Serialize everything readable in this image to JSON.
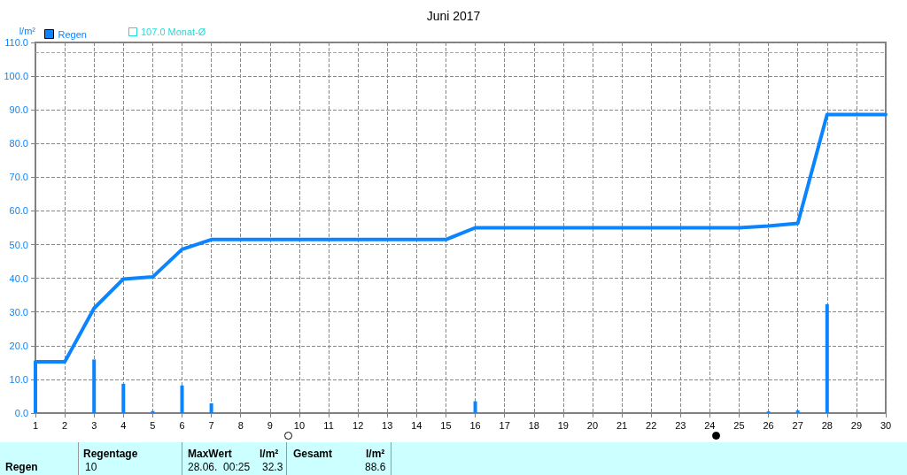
{
  "chart_data": {
    "type": "bar",
    "title": "Juni 2017",
    "ylabel": "l/m²",
    "x": [
      1,
      2,
      3,
      4,
      5,
      6,
      7,
      8,
      9,
      10,
      11,
      12,
      13,
      14,
      15,
      16,
      17,
      18,
      19,
      20,
      21,
      22,
      23,
      24,
      25,
      26,
      27,
      28,
      29,
      30
    ],
    "series": [
      {
        "name": "Regen",
        "color": "#0a84ff",
        "values": [
          15.2,
          0,
          15.9,
          8.7,
          0.6,
          8.2,
          2.9,
          0,
          0,
          0,
          0,
          0,
          0,
          0,
          0,
          3.5,
          0,
          0,
          0,
          0,
          0,
          0,
          0,
          0,
          0,
          0.5,
          0.8,
          32.3,
          0,
          0
        ]
      },
      {
        "type": "line",
        "color": "#0a84ff",
        "x": [
          1,
          2,
          3,
          4,
          5,
          6,
          7,
          15,
          16,
          25,
          26,
          27,
          28,
          30
        ],
        "values": [
          15.2,
          15.2,
          31.1,
          39.8,
          40.4,
          48.6,
          51.5,
          51.5,
          55.0,
          55.0,
          55.5,
          56.3,
          88.6,
          88.6
        ]
      }
    ],
    "xlim": [
      1,
      30
    ],
    "xticks": [
      1,
      2,
      3,
      4,
      5,
      6,
      7,
      8,
      9,
      10,
      11,
      12,
      13,
      14,
      15,
      16,
      17,
      18,
      19,
      20,
      21,
      22,
      23,
      24,
      25,
      26,
      27,
      28,
      29,
      30
    ],
    "ylim": [
      0,
      110
    ],
    "yticks": [
      {
        "value": 0,
        "label": "0.0"
      },
      {
        "value": 10,
        "label": "10.0"
      },
      {
        "value": 20,
        "label": "20.0"
      },
      {
        "value": 30,
        "label": "30.0"
      },
      {
        "value": 40,
        "label": "40.0"
      },
      {
        "value": 50,
        "label": "50.0"
      },
      {
        "value": 60,
        "label": "60.0"
      },
      {
        "value": 70,
        "label": "70.0"
      },
      {
        "value": 80,
        "label": "80.0"
      },
      {
        "value": 90,
        "label": "90.0"
      },
      {
        "value": 100,
        "label": "100.0"
      },
      {
        "value": 110,
        "label": "110.0"
      }
    ],
    "ref_lines": [
      {
        "axis": "y",
        "value": 107.0,
        "label": "107.0 Monat-Ø",
        "color": "#22dddd",
        "line_style": "dashed"
      }
    ],
    "grid": true,
    "legend": "top left",
    "marker": "none",
    "line_style": "solid",
    "annotations": [
      "Regen",
      "Regentage",
      "10",
      "MaxWert",
      "l/m²",
      "28.06.  00:25",
      "32.3",
      "Gesamt",
      "l/m²",
      "88.6"
    ]
  }
}
